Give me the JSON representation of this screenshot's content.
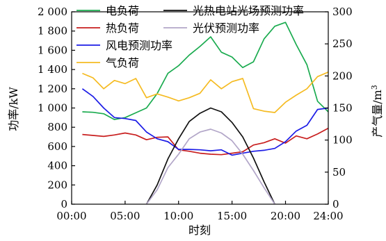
{
  "chart_data": {
    "type": "line",
    "xlabel": "时刻",
    "ylabel_left": "功率/kW",
    "ylabel_right": "产气量/m",
    "ylabel_right_superscript": "3",
    "x_ticks": [
      "00:00",
      "05:00",
      "10:00",
      "15:00",
      "20:00",
      "24:00"
    ],
    "x_tick_hours": [
      0,
      5,
      10,
      15,
      20,
      24
    ],
    "xlim_hours": [
      0,
      24
    ],
    "y_left_ticks": [
      "0",
      "200",
      "400",
      "600",
      "800",
      "1 000",
      "1 200",
      "1 400",
      "1 600",
      "1 800",
      "2 000"
    ],
    "ylim_left": [
      0,
      2000
    ],
    "y_right_ticks": [
      "0",
      "50",
      "100",
      "150",
      "200",
      "250",
      "300"
    ],
    "ylim_right": [
      0,
      300
    ],
    "grid": false,
    "legend_columns": [
      [
        "电负荷",
        "热负荷",
        "风电预测功率",
        "气负荷"
      ],
      [
        "光热电站光场预测功率",
        "光伏预测功率"
      ]
    ],
    "series": [
      {
        "name": "电负荷",
        "color": "#1aab4f",
        "axis": "left",
        "x": [
          1,
          2,
          3,
          4,
          5,
          6,
          7,
          8,
          9,
          10,
          11,
          12,
          13,
          14,
          15,
          16,
          17,
          18,
          19,
          20,
          21,
          22,
          23,
          24
        ],
        "y": [
          960,
          955,
          940,
          880,
          900,
          950,
          1000,
          1150,
          1360,
          1440,
          1550,
          1640,
          1740,
          1580,
          1530,
          1420,
          1480,
          1720,
          1850,
          1890,
          1660,
          1450,
          1070,
          960
        ]
      },
      {
        "name": "热负荷",
        "color": "#c81e1e",
        "axis": "left",
        "x": [
          1,
          2,
          3,
          4,
          5,
          6,
          7,
          8,
          9,
          10,
          11,
          12,
          13,
          14,
          15,
          16,
          17,
          18,
          19,
          20,
          21,
          22,
          23,
          24
        ],
        "y": [
          725,
          715,
          705,
          720,
          740,
          720,
          670,
          695,
          700,
          565,
          550,
          530,
          520,
          515,
          530,
          545,
          615,
          640,
          680,
          635,
          710,
          680,
          730,
          790
        ]
      },
      {
        "name": "风电预测功率",
        "color": "#1c1ce6",
        "axis": "left",
        "x": [
          1,
          2,
          3,
          4,
          5,
          6,
          7,
          8,
          9,
          10,
          11,
          12,
          13,
          14,
          15,
          16,
          17,
          18,
          19,
          20,
          21,
          22,
          23,
          24
        ],
        "y": [
          1200,
          1120,
          1000,
          900,
          890,
          870,
          750,
          680,
          650,
          570,
          570,
          565,
          555,
          565,
          510,
          530,
          550,
          560,
          580,
          650,
          760,
          820,
          985,
          1000
        ]
      },
      {
        "name": "气负荷",
        "color": "#f5bb22",
        "axis": "right",
        "x": [
          1,
          2,
          3,
          4,
          5,
          6,
          7,
          8,
          9,
          10,
          11,
          12,
          13,
          14,
          15,
          16,
          17,
          18,
          19,
          20,
          21,
          22,
          23,
          24
        ],
        "y": [
          204,
          197,
          180,
          193,
          188,
          196,
          166,
          172,
          167,
          161,
          166,
          173,
          194,
          180,
          191,
          196,
          149,
          145,
          143,
          159,
          170,
          180,
          199,
          206
        ]
      },
      {
        "name": "光热电站光场预测功率",
        "color": "#111111",
        "axis": "left",
        "x": [
          7,
          8,
          9,
          10,
          11,
          12,
          13,
          14,
          15,
          16,
          17,
          18,
          19
        ],
        "y": [
          0,
          200,
          470,
          680,
          860,
          945,
          1000,
          960,
          850,
          700,
          480,
          230,
          0
        ]
      },
      {
        "name": "光伏预测功率",
        "color": "#b2a6c8",
        "axis": "left",
        "x": [
          7,
          8,
          9,
          10,
          11,
          12,
          13,
          14,
          15,
          16,
          17,
          18,
          19
        ],
        "y": [
          0,
          150,
          380,
          520,
          680,
          750,
          780,
          740,
          660,
          520,
          350,
          170,
          0
        ]
      }
    ]
  }
}
